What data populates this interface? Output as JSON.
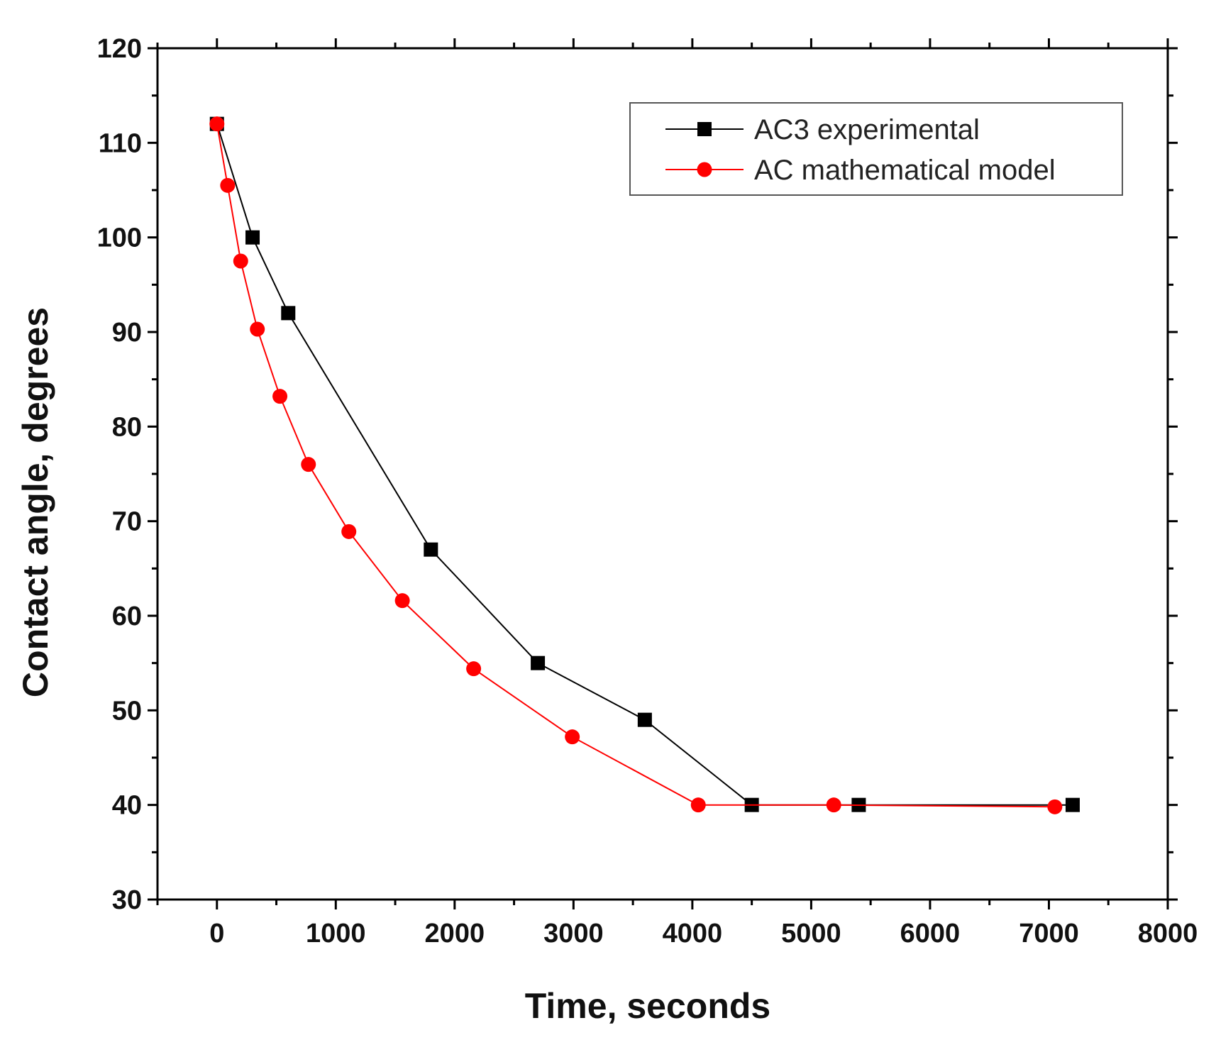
{
  "chart_data": {
    "type": "line",
    "title": "",
    "xlabel": "Time, seconds",
    "ylabel": "Contact angle, degrees",
    "xlim": [
      -500,
      8000
    ],
    "ylim": [
      30,
      120
    ],
    "xticks": [
      0,
      1000,
      2000,
      3000,
      4000,
      5000,
      6000,
      7000,
      8000
    ],
    "yticks": [
      30,
      40,
      50,
      60,
      70,
      80,
      90,
      100,
      110,
      120
    ],
    "xtick_labels": [
      "0",
      "1000",
      "2000",
      "3000",
      "4000",
      "5000",
      "6000",
      "7000",
      "8000"
    ],
    "ytick_labels": [
      "30",
      "40",
      "50",
      "60",
      "70",
      "80",
      "90",
      "100",
      "110",
      "120"
    ],
    "grid": false,
    "legend_position": "top-right",
    "series": [
      {
        "name": "AC3 experimental",
        "color": "#000000",
        "marker": "square",
        "x": [
          0,
          300,
          600,
          1800,
          2700,
          3600,
          4500,
          5400,
          7200
        ],
        "y": [
          112,
          100,
          92,
          67,
          55,
          49,
          40,
          40,
          40
        ]
      },
      {
        "name": "AC mathematical model",
        "color": "#ff0000",
        "marker": "circle",
        "x": [
          0,
          90,
          200,
          340,
          530,
          770,
          1110,
          1560,
          2160,
          2990,
          4050,
          5190,
          7050
        ],
        "y": [
          112,
          105.5,
          97.5,
          90.3,
          83.2,
          76,
          68.9,
          61.6,
          54.4,
          47.2,
          40,
          40,
          39.8
        ]
      }
    ]
  }
}
